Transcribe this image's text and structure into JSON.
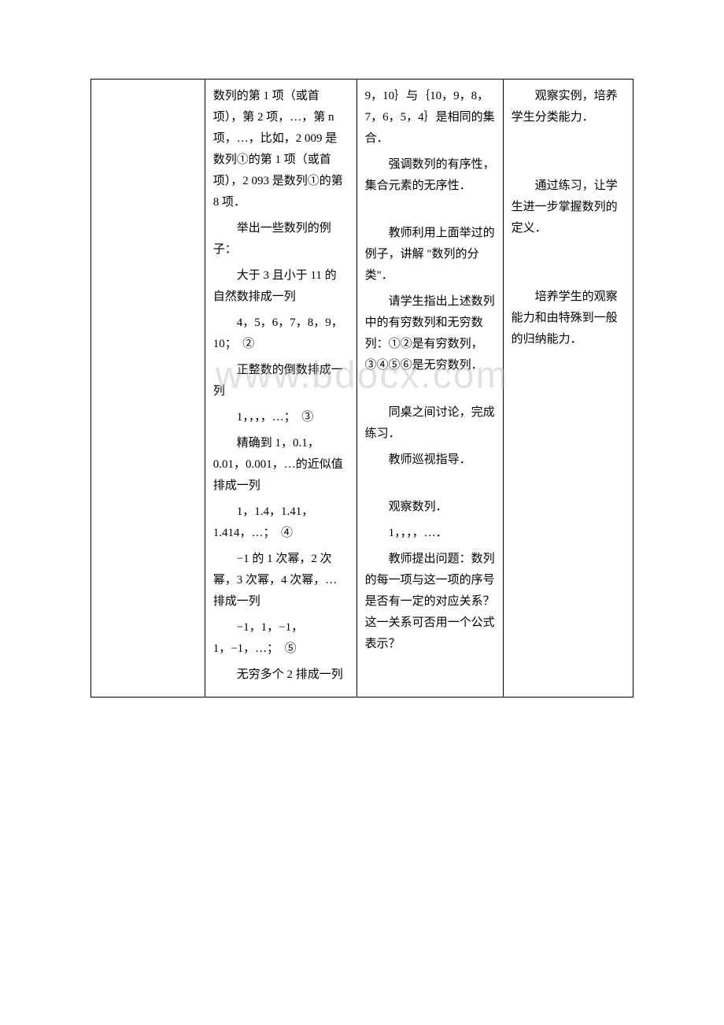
{
  "table": {
    "border_color": "#000000",
    "background_color": "#ffffff",
    "text_color": "#000000",
    "font_family": "SimSun",
    "font_size": 15,
    "line_height": 1.8,
    "columns": [
      {
        "key": "col1",
        "width_percent": 21
      },
      {
        "key": "col2",
        "width_percent": 28
      },
      {
        "key": "col3",
        "width_percent": 27
      },
      {
        "key": "col4",
        "width_percent": 24
      }
    ],
    "cells": {
      "c1": "",
      "c2": {
        "p1": "数列的第 1 项（或首项），第 2 项，…，第 n 项，…，比如，2 009 是数列①的第 1 项（或首项），2 093 是数列①的第 8 项．",
        "p2": "举出一些数列的例子：",
        "p3": "大于 3 且小于 11 的自然数排成一列",
        "p4": "4，5，6，7，8，9，10；　②",
        "p5": "正整数的倒数排成一列",
        "p6": "1，，，，…；　③",
        "p7": "精确到 1，0.1，0.01，0.001，…的近似值排成一列",
        "p8": "1，1.4，1.41，1.414，…；　④",
        "p9": "−1 的 1 次幂，2 次幂，3 次幂，4 次幂，…排成一列",
        "p10": "−1，1，−1，1，−1，…；　⑤",
        "p11": "无穷多个 2 排成一列"
      },
      "c3": {
        "p1": "9，10｝与｛10，9，8，7，6，5，4｝是相同的集合．",
        "p2": "强调数列的有序性，集合元素的无序性．",
        "p3": "教师利用上面举过的例子，讲解 \"数列的分类\"．",
        "p4": "请学生指出上述数列中的有穷数列和无穷数列：①②是有穷数列，③④⑤⑥是无穷数列．",
        "p5": "同桌之间讨论，完成练习．",
        "p6": "教师巡视指导．",
        "p7": "观察数列．",
        "p8": "1，，，，…．",
        "p9": "教师提出问题：数列的每一项与这一项的序号是否有一定的对应关系？这一关系可否用一个公式表示？"
      },
      "c4": {
        "p1": "观察实例，培养学生分类能力．",
        "p2": "通过练习，让学生进一步掌握数列的定义．",
        "p3": "培养学生的观察能力和由特殊到一般的归纳能力．"
      }
    }
  },
  "watermark": {
    "text": "www.bdocx.com",
    "color": "rgba(180, 180, 180, 0.4)",
    "font_size": 48
  }
}
